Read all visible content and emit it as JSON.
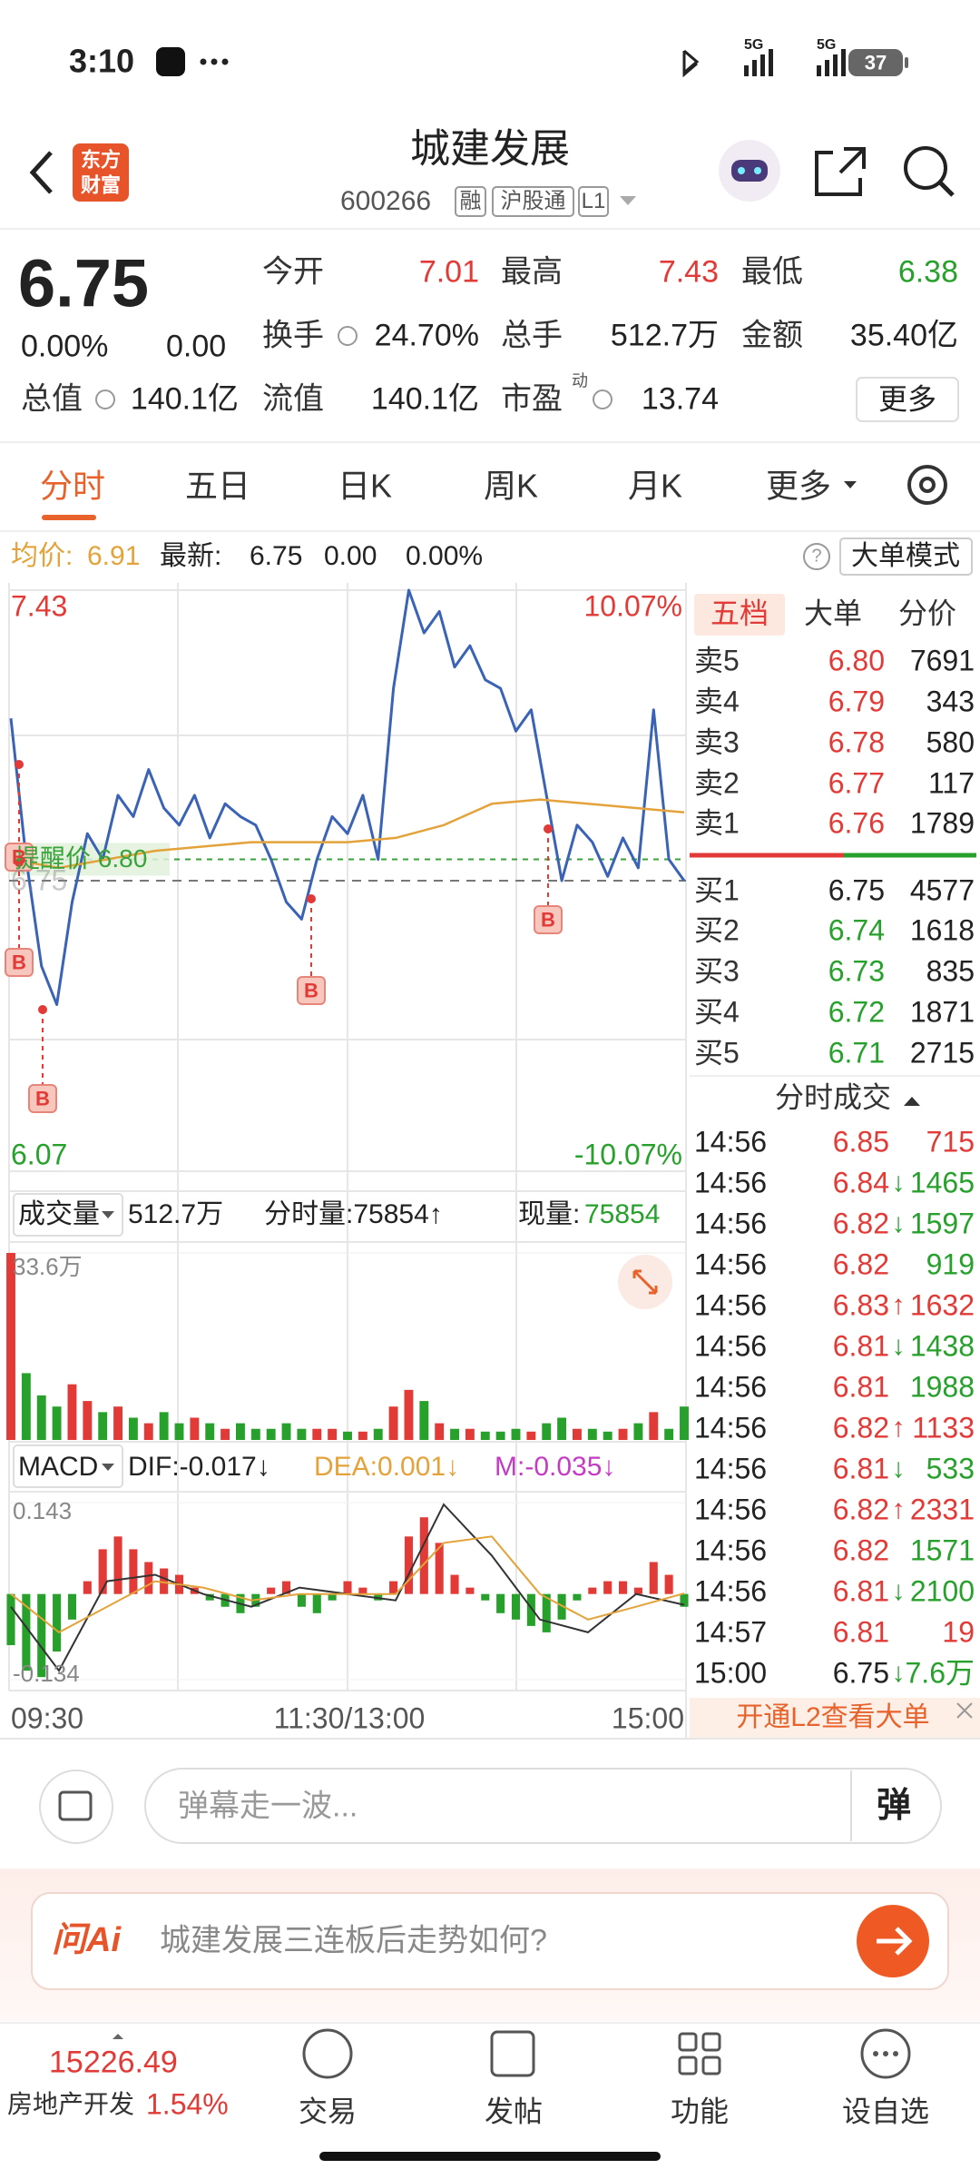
{
  "status_bar": {
    "time": "3:10",
    "network": [
      "5G",
      "5G"
    ],
    "battery": "37"
  },
  "header": {
    "logo": [
      "东方",
      "财富"
    ],
    "title": "城建发展",
    "code": "600266",
    "tags": [
      "融",
      "沪股通",
      "L1"
    ]
  },
  "quote": {
    "price": "6.75",
    "change_pct": "0.00%",
    "change": "0.00",
    "fields": [
      {
        "label": "今开",
        "value": "7.01",
        "color": "#e23a36"
      },
      {
        "label": "最高",
        "value": "7.43",
        "color": "#e23a36"
      },
      {
        "label": "最低",
        "value": "6.38",
        "color": "#27a02c"
      },
      {
        "label": "换手",
        "value": "24.70%"
      },
      {
        "label": "总手",
        "value": "512.7万"
      },
      {
        "label": "金额",
        "value": "35.40亿"
      },
      {
        "label": "总值",
        "value": "140.1亿"
      },
      {
        "label": "流值",
        "value": "140.1亿"
      },
      {
        "label": "市盈",
        "value": "13.74"
      }
    ],
    "pe_sup": "动",
    "more": "更多"
  },
  "tabs": {
    "items": [
      "分时",
      "五日",
      "日K",
      "周K",
      "月K",
      "更多"
    ]
  },
  "info": {
    "avg_label": "均价:",
    "avg": "6.91",
    "latest_label": "最新:",
    "latest": "6.75",
    "change": "0.00",
    "pct": "0.00%",
    "help": "?",
    "mode": "大单模式"
  },
  "chart_data": [
    {
      "type": "line",
      "ylim": [
        6.07,
        7.43
      ],
      "yticks": [
        7.43,
        6.75,
        6.07
      ],
      "y2lim": [
        -10.07,
        10.07
      ],
      "y2ticks": [
        {
          "value": 10.07,
          "label": "10.07%"
        },
        {
          "value": -10.07,
          "label": "-10.07%"
        }
      ],
      "xticks": [
        "09:30",
        "11:30/13:00",
        "15:00"
      ],
      "series": [
        {
          "color": "#3a62b5",
          "values": [
            7.13,
            6.8,
            6.55,
            6.46,
            6.7,
            6.86,
            6.8,
            6.95,
            6.9,
            7.01,
            6.92,
            6.88,
            6.95,
            6.85,
            6.93,
            6.9,
            6.88,
            6.8,
            6.7,
            6.66,
            6.8,
            6.9,
            6.86,
            6.95,
            6.8,
            7.2,
            7.43,
            7.33,
            7.38,
            7.25,
            7.3,
            7.22,
            7.2,
            7.1,
            7.15,
            6.95,
            6.75,
            6.88,
            6.84,
            6.76,
            6.85,
            6.78,
            7.15,
            6.8,
            6.75
          ]
        },
        {
          "color": "#e3a33a",
          "values": [
            6.8,
            6.78,
            6.8,
            6.82,
            6.83,
            6.84,
            6.84,
            6.84,
            6.85,
            6.88,
            6.93,
            6.94,
            6.93,
            6.92,
            6.91
          ]
        }
      ],
      "alert_label": "提醒价 6.80",
      "alert_value": 6.8,
      "alert_color": "#3aa33a",
      "markers": [
        "B",
        "B",
        "B",
        "B",
        "B"
      ]
    },
    {
      "type": "bar",
      "title": "成交量",
      "total": "512.7万",
      "minute_volume": "分时量:75854↑",
      "current_label": "现量:",
      "current": "75854",
      "ylim": [
        0,
        33.6
      ],
      "yticks": [
        {
          "value": 33.6,
          "label": "33.6万"
        }
      ],
      "up_color": "#e23a36",
      "down_color": "#27a02c",
      "values": [
        33.6,
        12,
        8,
        6,
        10,
        7,
        5,
        6,
        4,
        3,
        5,
        3,
        4,
        3,
        2,
        3,
        2,
        2,
        3,
        2,
        2,
        2,
        1.5,
        1.5,
        2,
        6,
        9,
        7,
        3,
        2,
        2,
        1.5,
        1.5,
        2,
        1.5,
        3,
        4,
        2,
        2,
        1.5,
        2,
        3,
        5,
        2,
        6
      ]
    },
    {
      "type": "macd",
      "title": "MACD",
      "dif_label": "DIF:-0.017↓",
      "dea_label": "DEA:0.001↓",
      "m_label": "M:-0.035↓",
      "ylim": [
        -0.134,
        0.143
      ],
      "yticks": [
        0.143,
        -0.134
      ],
      "up_color": "#e23a36",
      "down_color": "#27a02c",
      "values": [
        -0.08,
        -0.12,
        -0.13,
        -0.09,
        -0.04,
        0.02,
        0.07,
        0.09,
        0.07,
        0.05,
        0.04,
        0.03,
        0.01,
        -0.01,
        -0.02,
        -0.03,
        -0.02,
        0.01,
        0.02,
        -0.02,
        -0.03,
        -0.01,
        0.02,
        0.01,
        -0.01,
        0.02,
        0.09,
        0.12,
        0.08,
        0.03,
        0.01,
        -0.01,
        -0.03,
        -0.04,
        -0.05,
        -0.06,
        -0.04,
        -0.01,
        0.01,
        0.02,
        0.02,
        0.01,
        0.05,
        0.03,
        -0.02
      ],
      "series": [
        {
          "color": "#333333",
          "values": [
            -0.02,
            -0.12,
            0.02,
            0.03,
            0.0,
            -0.02,
            0.01,
            0.0,
            -0.01,
            0.14,
            0.06,
            -0.04,
            -0.06,
            0.0,
            -0.017
          ]
        },
        {
          "color": "#e3a33a",
          "values": [
            0.0,
            -0.06,
            -0.02,
            0.02,
            0.01,
            -0.01,
            0.0,
            0.0,
            0.0,
            0.08,
            0.09,
            0.0,
            -0.04,
            -0.02,
            0.001
          ]
        }
      ]
    }
  ],
  "order_book": {
    "tabs": [
      "五档",
      "大单",
      "分价"
    ],
    "asks": [
      [
        "卖5",
        "6.80",
        "7691"
      ],
      [
        "卖4",
        "6.79",
        "343"
      ],
      [
        "卖3",
        "6.78",
        "580"
      ],
      [
        "卖2",
        "6.77",
        "117"
      ],
      [
        "卖1",
        "6.76",
        "1789"
      ]
    ],
    "bids": [
      [
        "买1",
        "6.75",
        "4577"
      ],
      [
        "买2",
        "6.74",
        "1618"
      ],
      [
        "买3",
        "6.73",
        "835"
      ],
      [
        "买4",
        "6.72",
        "1871"
      ],
      [
        "买5",
        "6.71",
        "2715"
      ]
    ]
  },
  "trades": {
    "title": "分时成交",
    "rows": [
      {
        "time": "14:56",
        "price": "6.85",
        "volume": "715",
        "color": "#e23a36"
      },
      {
        "time": "14:56",
        "price": "6.84",
        "dir": "↓",
        "volume": "1465",
        "color": "#27a02c"
      },
      {
        "time": "14:56",
        "price": "6.82",
        "dir": "↓",
        "volume": "1597",
        "color": "#27a02c"
      },
      {
        "time": "14:56",
        "price": "6.82",
        "volume": "919",
        "color": "#27a02c"
      },
      {
        "time": "14:56",
        "price": "6.83",
        "dir": "↑",
        "volume": "1632",
        "color": "#e23a36"
      },
      {
        "time": "14:56",
        "price": "6.81",
        "dir": "↓",
        "volume": "1438",
        "color": "#27a02c"
      },
      {
        "time": "14:56",
        "price": "6.81",
        "volume": "1988",
        "color": "#27a02c"
      },
      {
        "time": "14:56",
        "price": "6.82",
        "dir": "↑",
        "volume": "1133",
        "color": "#e23a36"
      },
      {
        "time": "14:56",
        "price": "6.81",
        "dir": "↓",
        "volume": "533",
        "color": "#27a02c"
      },
      {
        "time": "14:56",
        "price": "6.82",
        "dir": "↑",
        "volume": "2331",
        "color": "#e23a36"
      },
      {
        "time": "14:56",
        "price": "6.82",
        "volume": "1571",
        "color": "#27a02c"
      },
      {
        "time": "14:56",
        "price": "6.81",
        "dir": "↓",
        "volume": "2100",
        "color": "#27a02c"
      },
      {
        "time": "14:57",
        "price": "6.81",
        "volume": "19",
        "color": "#e23a36"
      },
      {
        "time": "15:00",
        "price": "6.75",
        "dir": "↓",
        "volume": "7.6万",
        "color": "#27a02c"
      }
    ]
  },
  "l2_banner": "开通L2查看大单",
  "danmu": {
    "placeholder": "弹幕走一波...",
    "button": "弹"
  },
  "ai": {
    "brand": "问Ai",
    "prompt": "城建发展三连板后走势如何?"
  },
  "bottom_nav": {
    "index_value": "15226.49",
    "index_name": "房地产开发",
    "index_pct": "1.54%",
    "items": [
      "交易",
      "发帖",
      "功能",
      "设自选"
    ]
  }
}
